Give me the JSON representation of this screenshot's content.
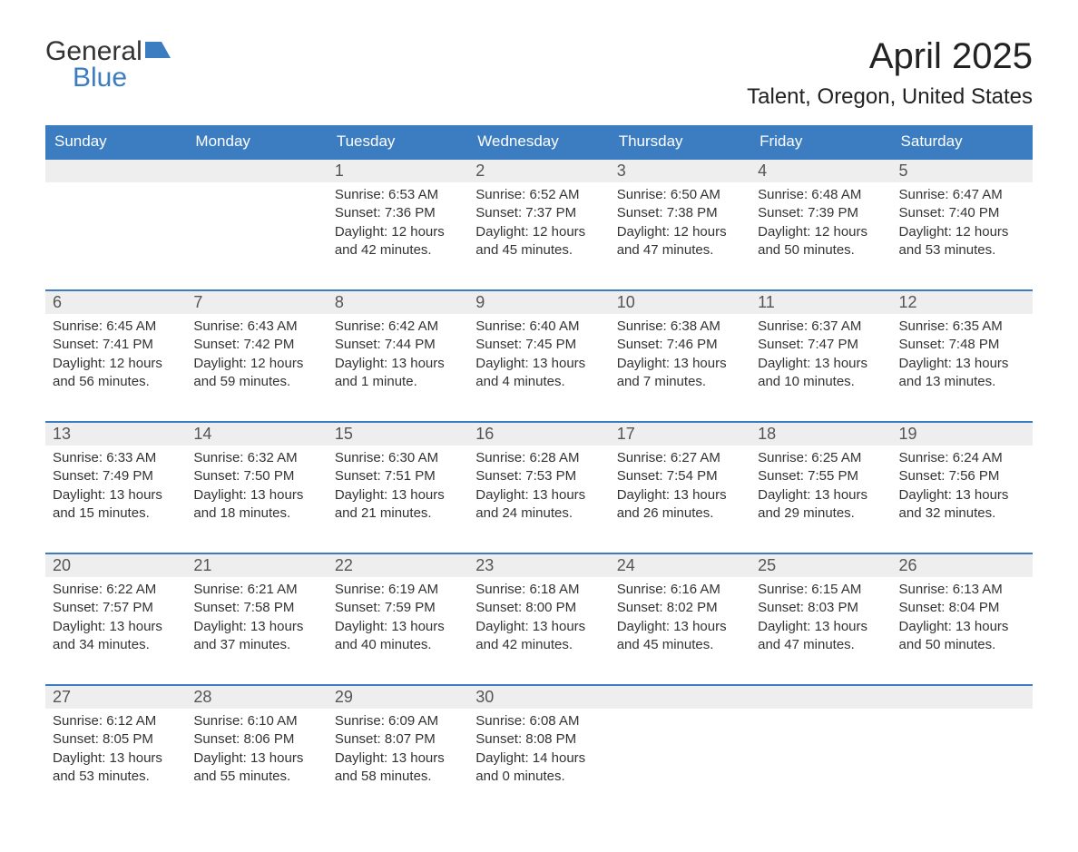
{
  "logo": {
    "text_general": "General",
    "text_blue": "Blue",
    "icon_color": "#3b7dc0"
  },
  "title": "April 2025",
  "location": "Talent, Oregon, United States",
  "colors": {
    "header_bg": "#3b7dc0",
    "header_text": "#ffffff",
    "day_number_bg": "#eeeeee",
    "border_color": "#3b7dc0",
    "text_color": "#333333"
  },
  "day_headers": [
    "Sunday",
    "Monday",
    "Tuesday",
    "Wednesday",
    "Thursday",
    "Friday",
    "Saturday"
  ],
  "weeks": [
    {
      "numbers": [
        "",
        "",
        "1",
        "2",
        "3",
        "4",
        "5"
      ],
      "contents": [
        "",
        "",
        "Sunrise: 6:53 AM\nSunset: 7:36 PM\nDaylight: 12 hours and 42 minutes.",
        "Sunrise: 6:52 AM\nSunset: 7:37 PM\nDaylight: 12 hours and 45 minutes.",
        "Sunrise: 6:50 AM\nSunset: 7:38 PM\nDaylight: 12 hours and 47 minutes.",
        "Sunrise: 6:48 AM\nSunset: 7:39 PM\nDaylight: 12 hours and 50 minutes.",
        "Sunrise: 6:47 AM\nSunset: 7:40 PM\nDaylight: 12 hours and 53 minutes."
      ]
    },
    {
      "numbers": [
        "6",
        "7",
        "8",
        "9",
        "10",
        "11",
        "12"
      ],
      "contents": [
        "Sunrise: 6:45 AM\nSunset: 7:41 PM\nDaylight: 12 hours and 56 minutes.",
        "Sunrise: 6:43 AM\nSunset: 7:42 PM\nDaylight: 12 hours and 59 minutes.",
        "Sunrise: 6:42 AM\nSunset: 7:44 PM\nDaylight: 13 hours and 1 minute.",
        "Sunrise: 6:40 AM\nSunset: 7:45 PM\nDaylight: 13 hours and 4 minutes.",
        "Sunrise: 6:38 AM\nSunset: 7:46 PM\nDaylight: 13 hours and 7 minutes.",
        "Sunrise: 6:37 AM\nSunset: 7:47 PM\nDaylight: 13 hours and 10 minutes.",
        "Sunrise: 6:35 AM\nSunset: 7:48 PM\nDaylight: 13 hours and 13 minutes."
      ]
    },
    {
      "numbers": [
        "13",
        "14",
        "15",
        "16",
        "17",
        "18",
        "19"
      ],
      "contents": [
        "Sunrise: 6:33 AM\nSunset: 7:49 PM\nDaylight: 13 hours and 15 minutes.",
        "Sunrise: 6:32 AM\nSunset: 7:50 PM\nDaylight: 13 hours and 18 minutes.",
        "Sunrise: 6:30 AM\nSunset: 7:51 PM\nDaylight: 13 hours and 21 minutes.",
        "Sunrise: 6:28 AM\nSunset: 7:53 PM\nDaylight: 13 hours and 24 minutes.",
        "Sunrise: 6:27 AM\nSunset: 7:54 PM\nDaylight: 13 hours and 26 minutes.",
        "Sunrise: 6:25 AM\nSunset: 7:55 PM\nDaylight: 13 hours and 29 minutes.",
        "Sunrise: 6:24 AM\nSunset: 7:56 PM\nDaylight: 13 hours and 32 minutes."
      ]
    },
    {
      "numbers": [
        "20",
        "21",
        "22",
        "23",
        "24",
        "25",
        "26"
      ],
      "contents": [
        "Sunrise: 6:22 AM\nSunset: 7:57 PM\nDaylight: 13 hours and 34 minutes.",
        "Sunrise: 6:21 AM\nSunset: 7:58 PM\nDaylight: 13 hours and 37 minutes.",
        "Sunrise: 6:19 AM\nSunset: 7:59 PM\nDaylight: 13 hours and 40 minutes.",
        "Sunrise: 6:18 AM\nSunset: 8:00 PM\nDaylight: 13 hours and 42 minutes.",
        "Sunrise: 6:16 AM\nSunset: 8:02 PM\nDaylight: 13 hours and 45 minutes.",
        "Sunrise: 6:15 AM\nSunset: 8:03 PM\nDaylight: 13 hours and 47 minutes.",
        "Sunrise: 6:13 AM\nSunset: 8:04 PM\nDaylight: 13 hours and 50 minutes."
      ]
    },
    {
      "numbers": [
        "27",
        "28",
        "29",
        "30",
        "",
        "",
        ""
      ],
      "contents": [
        "Sunrise: 6:12 AM\nSunset: 8:05 PM\nDaylight: 13 hours and 53 minutes.",
        "Sunrise: 6:10 AM\nSunset: 8:06 PM\nDaylight: 13 hours and 55 minutes.",
        "Sunrise: 6:09 AM\nSunset: 8:07 PM\nDaylight: 13 hours and 58 minutes.",
        "Sunrise: 6:08 AM\nSunset: 8:08 PM\nDaylight: 14 hours and 0 minutes.",
        "",
        "",
        ""
      ]
    }
  ]
}
